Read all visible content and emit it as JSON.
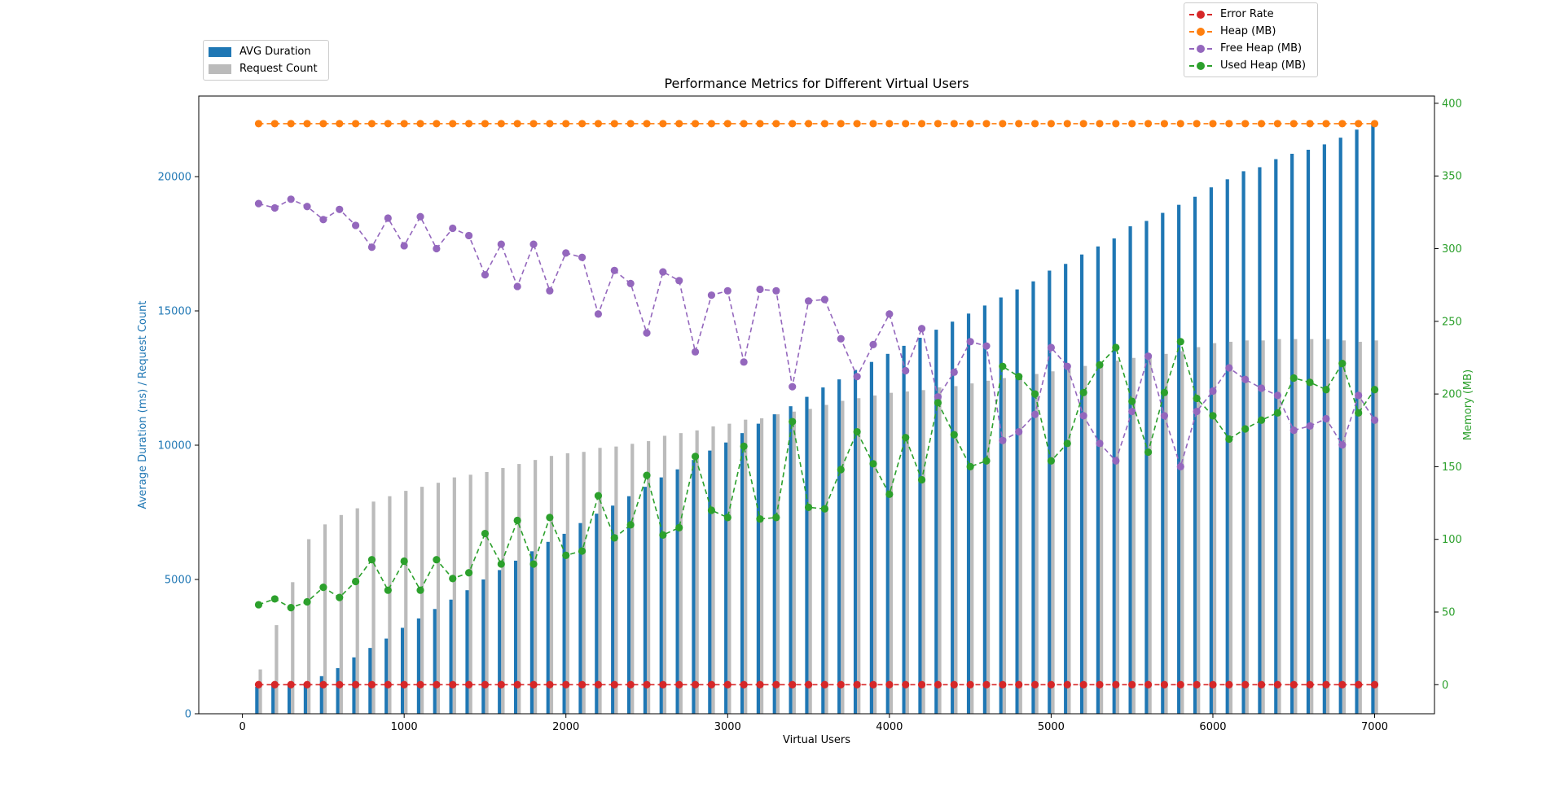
{
  "chart_data": {
    "type": "bar",
    "title": "Performance Metrics for Different Virtual Users",
    "xlabel": "Virtual Users",
    "ylabel_left": "Average Duration (ms) / Request Count",
    "ylabel_right": "Memory (MB)",
    "xlim": [
      -270,
      7370
    ],
    "ylim_left": [
      0,
      23000
    ],
    "ylim_right": [
      -20,
      405
    ],
    "x_ticks": [
      "0",
      "1000",
      "2000",
      "3000",
      "4000",
      "5000",
      "6000",
      "7000"
    ],
    "y_left_ticks": [
      "0",
      "5000",
      "10000",
      "15000",
      "20000"
    ],
    "y_right_ticks": [
      "0",
      "50",
      "100",
      "150",
      "200",
      "250",
      "300",
      "350",
      "400"
    ],
    "legend_left_position": "upper-left, above plot",
    "legend_right_position": "upper-right, above plot",
    "x": [
      100,
      200,
      300,
      400,
      500,
      600,
      700,
      800,
      900,
      1000,
      1100,
      1200,
      1300,
      1400,
      1500,
      1600,
      1700,
      1800,
      1900,
      2000,
      2100,
      2200,
      2300,
      2400,
      2500,
      2600,
      2700,
      2800,
      2900,
      3000,
      3100,
      3200,
      3300,
      3400,
      3500,
      3600,
      3700,
      3800,
      3900,
      4000,
      4100,
      4200,
      4300,
      4400,
      4500,
      4600,
      4700,
      4800,
      4900,
      5000,
      5100,
      5200,
      5300,
      5400,
      5500,
      5600,
      5700,
      5800,
      5900,
      6000,
      6100,
      6200,
      6300,
      6400,
      6500,
      6600,
      6700,
      6800,
      6900,
      7000
    ],
    "bar_series": [
      {
        "name": "AVG Duration",
        "color": "#1f77b4",
        "values": [
          1000,
          1050,
          1100,
          1150,
          1400,
          1700,
          2100,
          2450,
          2800,
          3200,
          3550,
          3900,
          4250,
          4600,
          5000,
          5350,
          5700,
          6050,
          6400,
          6700,
          7100,
          7450,
          7750,
          8100,
          8450,
          8800,
          9100,
          9450,
          9800,
          10100,
          10450,
          10800,
          11150,
          11450,
          11800,
          12150,
          12450,
          12800,
          13100,
          13400,
          13700,
          14000,
          14300,
          14600,
          14900,
          15200,
          15500,
          15800,
          16100,
          16500,
          16750,
          17100,
          17400,
          17700,
          18150,
          18350,
          18650,
          18950,
          19250,
          19600,
          19900,
          20200,
          20350,
          20650,
          20850,
          21000,
          21200,
          21450,
          21750,
          21950
        ]
      },
      {
        "name": "Request Count",
        "color": "#bbbbbb",
        "values": [
          1650,
          3300,
          4900,
          6500,
          7050,
          7400,
          7650,
          7900,
          8100,
          8300,
          8450,
          8600,
          8800,
          8900,
          9000,
          9150,
          9300,
          9450,
          9600,
          9700,
          9750,
          9900,
          9950,
          10050,
          10150,
          10350,
          10450,
          10550,
          10700,
          10800,
          10950,
          11000,
          11150,
          11250,
          11350,
          11500,
          11650,
          11750,
          11850,
          11950,
          12000,
          12050,
          12150,
          12200,
          12300,
          12400,
          12500,
          12600,
          12650,
          12750,
          12850,
          12950,
          13050,
          13150,
          13250,
          13300,
          13400,
          13500,
          13650,
          13800,
          13850,
          13900,
          13900,
          13950,
          13950,
          13950,
          13950,
          13900,
          13850,
          13900
        ]
      }
    ],
    "line_series": [
      {
        "name": "Error Rate",
        "color": "#d62728",
        "values": [
          0,
          0,
          0,
          0,
          0,
          0,
          0,
          0,
          0,
          0,
          0,
          0,
          0,
          0,
          0,
          0,
          0,
          0,
          0,
          0,
          0,
          0,
          0,
          0,
          0,
          0,
          0,
          0,
          0,
          0,
          0,
          0,
          0,
          0,
          0,
          0,
          0,
          0,
          0,
          0,
          0,
          0,
          0,
          0,
          0,
          0,
          0,
          0,
          0,
          0,
          0,
          0,
          0,
          0,
          0,
          0,
          0,
          0,
          0,
          0,
          0,
          0,
          0,
          0,
          0,
          0,
          0,
          0,
          0,
          0
        ]
      },
      {
        "name": "Heap (MB)",
        "color": "#ff7f0e",
        "values": [
          386,
          386,
          386,
          386,
          386,
          386,
          386,
          386,
          386,
          386,
          386,
          386,
          386,
          386,
          386,
          386,
          386,
          386,
          386,
          386,
          386,
          386,
          386,
          386,
          386,
          386,
          386,
          386,
          386,
          386,
          386,
          386,
          386,
          386,
          386,
          386,
          386,
          386,
          386,
          386,
          386,
          386,
          386,
          386,
          386,
          386,
          386,
          386,
          386,
          386,
          386,
          386,
          386,
          386,
          386,
          386,
          386,
          386,
          386,
          386,
          386,
          386,
          386,
          386,
          386,
          386,
          386,
          386,
          386,
          386
        ]
      },
      {
        "name": "Free Heap (MB)",
        "color": "#9467bd",
        "values": [
          331,
          328,
          334,
          329,
          320,
          327,
          316,
          301,
          321,
          302,
          322,
          300,
          314,
          309,
          282,
          303,
          274,
          303,
          271,
          297,
          294,
          255,
          285,
          276,
          242,
          284,
          278,
          229,
          268,
          271,
          222,
          272,
          271,
          205,
          264,
          265,
          238,
          212,
          234,
          255,
          216,
          245,
          198,
          215,
          236,
          233,
          168,
          174,
          186,
          232,
          219,
          185,
          166,
          154,
          188,
          226,
          185,
          150,
          188,
          202,
          218,
          210,
          204,
          199,
          175,
          178,
          183,
          165,
          199,
          182
        ]
      },
      {
        "name": "Used Heap (MB)",
        "color": "#2ca02c",
        "values": [
          55,
          59,
          53,
          57,
          67,
          60,
          71,
          86,
          65,
          85,
          65,
          86,
          73,
          77,
          104,
          83,
          113,
          83,
          115,
          89,
          92,
          130,
          101,
          110,
          144,
          103,
          108,
          157,
          120,
          115,
          164,
          114,
          115,
          181,
          122,
          121,
          148,
          174,
          152,
          131,
          170,
          141,
          194,
          172,
          150,
          154,
          219,
          212,
          200,
          154,
          166,
          201,
          220,
          232,
          195,
          160,
          201,
          236,
          197,
          185,
          169,
          176,
          182,
          187,
          211,
          208,
          203,
          221,
          187,
          203
        ]
      }
    ]
  }
}
